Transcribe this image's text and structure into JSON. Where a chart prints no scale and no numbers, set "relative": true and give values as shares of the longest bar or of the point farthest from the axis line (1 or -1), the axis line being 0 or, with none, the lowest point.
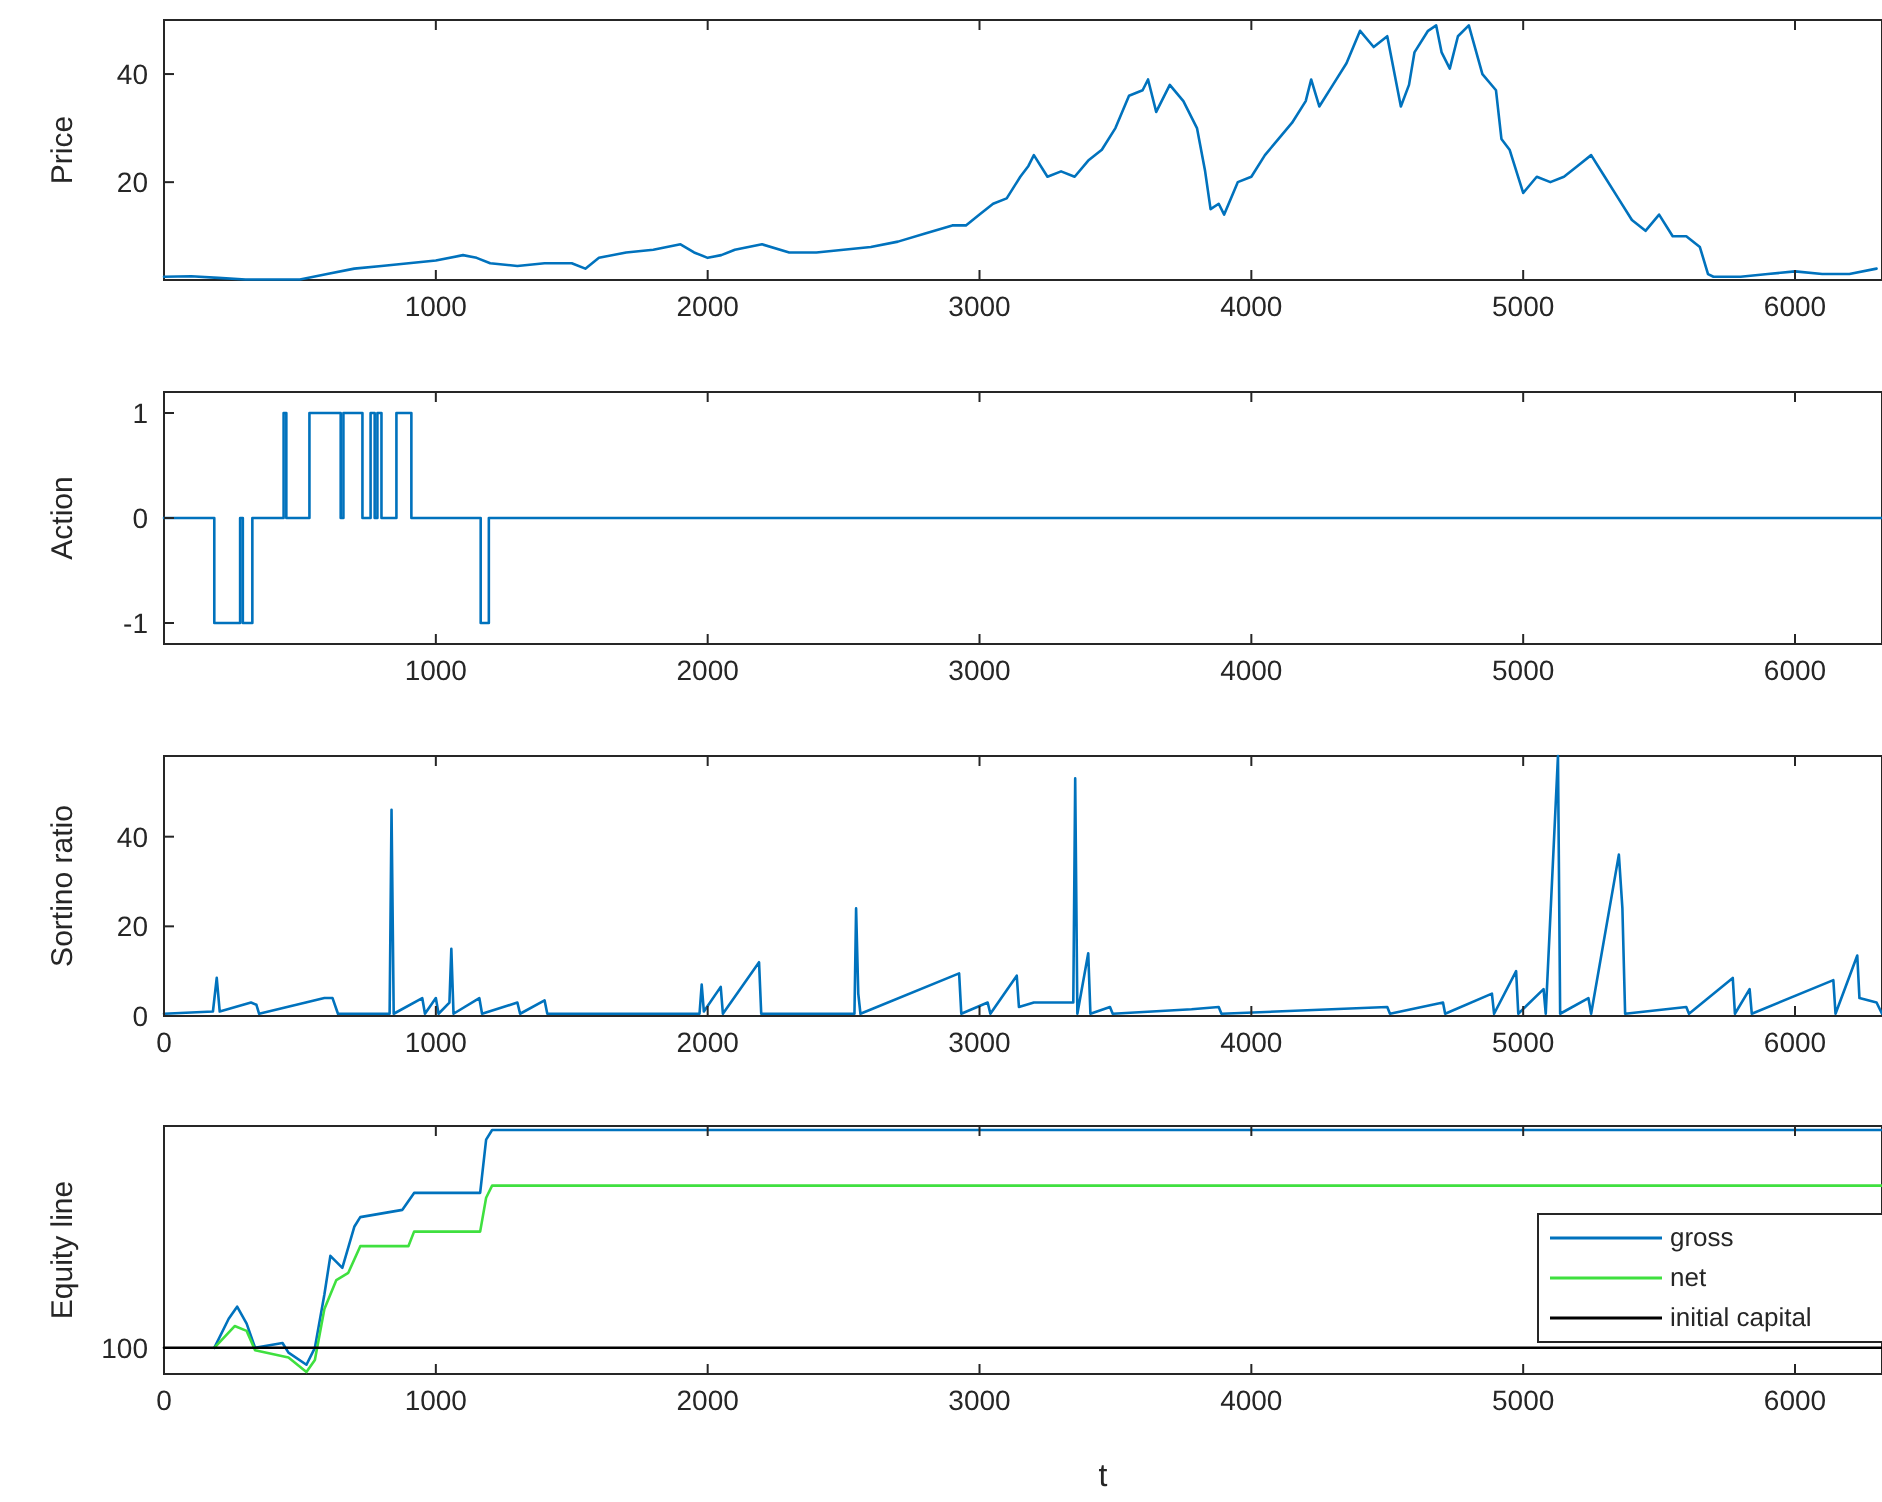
{
  "chart_data": [
    {
      "type": "line",
      "ylabel": "Price",
      "xlim": [
        0,
        6320
      ],
      "ylim": [
        1.9,
        50
      ],
      "xticks": [
        1000,
        2000,
        3000,
        4000,
        5000,
        6000
      ],
      "yticks": [
        20,
        40
      ],
      "series": [
        {
          "color": "#0072bd",
          "x": [
            0,
            100,
            200,
            300,
            500,
            600,
            700,
            800,
            900,
            1000,
            1100,
            1150,
            1200,
            1300,
            1400,
            1500,
            1550,
            1600,
            1700,
            1800,
            1900,
            1950,
            2000,
            2050,
            2100,
            2200,
            2300,
            2400,
            2500,
            2600,
            2700,
            2800,
            2900,
            2950,
            3000,
            3050,
            3100,
            3150,
            3180,
            3200,
            3250,
            3300,
            3350,
            3400,
            3450,
            3500,
            3550,
            3600,
            3620,
            3650,
            3700,
            3750,
            3800,
            3830,
            3850,
            3880,
            3900,
            3950,
            4000,
            4050,
            4100,
            4150,
            4200,
            4220,
            4250,
            4300,
            4350,
            4400,
            4450,
            4500,
            4550,
            4580,
            4600,
            4650,
            4680,
            4700,
            4730,
            4760,
            4800,
            4850,
            4900,
            4920,
            4950,
            5000,
            5050,
            5100,
            5150,
            5200,
            5250,
            5300,
            5350,
            5400,
            5450,
            5500,
            5550,
            5600,
            5650,
            5680,
            5700,
            5800,
            5900,
            6000,
            6100,
            6200,
            6300
          ],
          "values": [
            2.5,
            2.6,
            2.3,
            2,
            2,
            3,
            4,
            4.5,
            5,
            5.5,
            6.5,
            6,
            5,
            4.5,
            5,
            5,
            4,
            6,
            7,
            7.5,
            8.5,
            7,
            6,
            6.5,
            7.5,
            8.5,
            7,
            7,
            7.5,
            8,
            9,
            10.5,
            12,
            12,
            14,
            16,
            17,
            21,
            23,
            25,
            21,
            22,
            21,
            24,
            26,
            30,
            36,
            37,
            39,
            33,
            38,
            35,
            30,
            22,
            15,
            16,
            14,
            20,
            21,
            25,
            28,
            31,
            35,
            39,
            34,
            38,
            42,
            48,
            45,
            47,
            34,
            38,
            44,
            48,
            49,
            44,
            41,
            47,
            49,
            40,
            37,
            28,
            26,
            18,
            21,
            20,
            21,
            23,
            25,
            21,
            17,
            13,
            11,
            14,
            10,
            10,
            8,
            3,
            2.5,
            2.5,
            3,
            3.5,
            3,
            3,
            4
          ]
        }
      ]
    },
    {
      "type": "step",
      "ylabel": "Action",
      "xlim": [
        0,
        6320
      ],
      "ylim": [
        -1.2,
        1.2
      ],
      "xticks": [
        1000,
        2000,
        3000,
        4000,
        5000,
        6000
      ],
      "yticks": [
        -1,
        0,
        1
      ],
      "series": [
        {
          "color": "#0072bd",
          "x": [
            0,
            185,
            280,
            290,
            325,
            440,
            450,
            535,
            650,
            660,
            730,
            760,
            775,
            785,
            800,
            855,
            910,
            1165,
            1195,
            6320
          ],
          "values": [
            0,
            -1,
            0,
            -1,
            0,
            1,
            0,
            1,
            0,
            1,
            0,
            1,
            0,
            1,
            0,
            1,
            0,
            -1,
            0,
            0
          ]
        }
      ]
    },
    {
      "type": "line",
      "ylabel": "Sortino ratio",
      "xlim": [
        0,
        6320
      ],
      "ylim": [
        0,
        58
      ],
      "xticks": [
        0,
        1000,
        2000,
        3000,
        4000,
        5000,
        6000
      ],
      "yticks": [
        0,
        20,
        40
      ],
      "series": [
        {
          "color": "#0072bd",
          "x": [
            0,
            180,
            194,
            205,
            320,
            340,
            350,
            590,
            620,
            640,
            830,
            837,
            845,
            950,
            960,
            1000,
            1010,
            1050,
            1057,
            1065,
            1160,
            1170,
            1300,
            1310,
            1400,
            1410,
            1970,
            1978,
            1986,
            2048,
            2056,
            2189,
            2197,
            2540,
            2546,
            2554,
            2562,
            2925,
            2933,
            3030,
            3040,
            3137,
            3145,
            3200,
            3250,
            3345,
            3352,
            3360,
            3400,
            3408,
            3480,
            3490,
            3780,
            3880,
            3890,
            4500,
            4510,
            4705,
            4713,
            4885,
            4893,
            4974,
            4982,
            5075,
            5083,
            5128,
            5136,
            5240,
            5250,
            5352,
            5365,
            5375,
            5600,
            5610,
            5771,
            5779,
            5833,
            5841,
            6141,
            6149,
            6229,
            6237,
            6300,
            6320
          ],
          "values": [
            0.5,
            1,
            8.5,
            1,
            3,
            2.5,
            0.5,
            4,
            4,
            0.5,
            0.5,
            46,
            0.5,
            4,
            0.5,
            4,
            0.5,
            3,
            15,
            0.5,
            4,
            0.5,
            3,
            0.5,
            3.5,
            0.5,
            0.5,
            7,
            1,
            6.5,
            0.5,
            12,
            0.5,
            0.5,
            24,
            5,
            0.5,
            9.5,
            0.5,
            3,
            0.5,
            9,
            2,
            3,
            3,
            3,
            53,
            0.5,
            14,
            0.5,
            2,
            0.5,
            1.5,
            2,
            0.5,
            2,
            0.5,
            3,
            0.5,
            5,
            0.5,
            10,
            0.5,
            6,
            0.5,
            58,
            0.5,
            4,
            0.5,
            36,
            24,
            0.5,
            2,
            0.5,
            8.5,
            0.5,
            6,
            0.5,
            8,
            0.5,
            13.5,
            4,
            3,
            0.5
          ]
        }
      ]
    },
    {
      "type": "line",
      "ylabel": "Equity line",
      "xlabel": "t",
      "relative": true,
      "xlim": [
        0,
        6320
      ],
      "xticks": [
        0,
        1000,
        2000,
        3000,
        4000,
        5000,
        6000
      ],
      "legend": "bottom right",
      "annotations": [
        "100"
      ],
      "series": [
        {
          "name": "gross",
          "color": "#0072bd",
          "x": [
            185,
            238,
            269,
            304,
            335,
            436,
            458,
            524,
            555,
            590,
            612,
            656,
            700,
            722,
            877,
            920,
            1163,
            1185,
            1207,
            6320
          ],
          "values": [
            0.1,
            0.22,
            0.27,
            0.2,
            0.1,
            0.12,
            0.08,
            0.03,
            0.1,
            0.32,
            0.48,
            0.43,
            0.6,
            0.64,
            0.67,
            0.74,
            0.74,
            0.96,
            1,
            1
          ]
        },
        {
          "name": "net",
          "color": "#3fe03f",
          "x": [
            185,
            260,
            304,
            335,
            458,
            524,
            555,
            590,
            634,
            678,
            722,
            899,
            920,
            1163,
            1185,
            1207,
            6320
          ],
          "values": [
            0.1,
            0.19,
            0.17,
            0.09,
            0.06,
            0,
            0.05,
            0.26,
            0.38,
            0.41,
            0.52,
            0.52,
            0.58,
            0.58,
            0.72,
            0.77,
            0.77
          ]
        },
        {
          "name": "initial capital",
          "color": "#000000",
          "x": [
            0,
            6320
          ],
          "values": [
            0.1,
            0.1
          ]
        }
      ]
    }
  ]
}
